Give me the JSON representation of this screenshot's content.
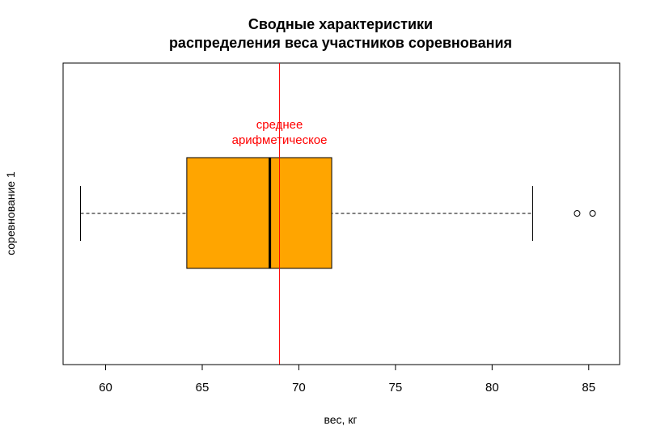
{
  "chart_data": {
    "type": "boxplot",
    "orientation": "horizontal",
    "title_lines": [
      "Сводные характеристики",
      "распределения веса участников соревнования"
    ],
    "xlabel": "вес, кг",
    "ylabel": "соревнование 1",
    "xlim": [
      57.8,
      86.6
    ],
    "xticks": [
      60,
      65,
      70,
      75,
      80,
      85
    ],
    "box": {
      "whisker_low": 58.7,
      "q1": 64.2,
      "median": 68.5,
      "q3": 71.7,
      "whisker_high": 82.1,
      "outliers": [
        84.4,
        85.2
      ],
      "fill": "#FFA500"
    },
    "mean": {
      "value": 69.0,
      "color": "#FF0000",
      "label_lines": [
        "среднее",
        "арифметическое"
      ]
    }
  }
}
